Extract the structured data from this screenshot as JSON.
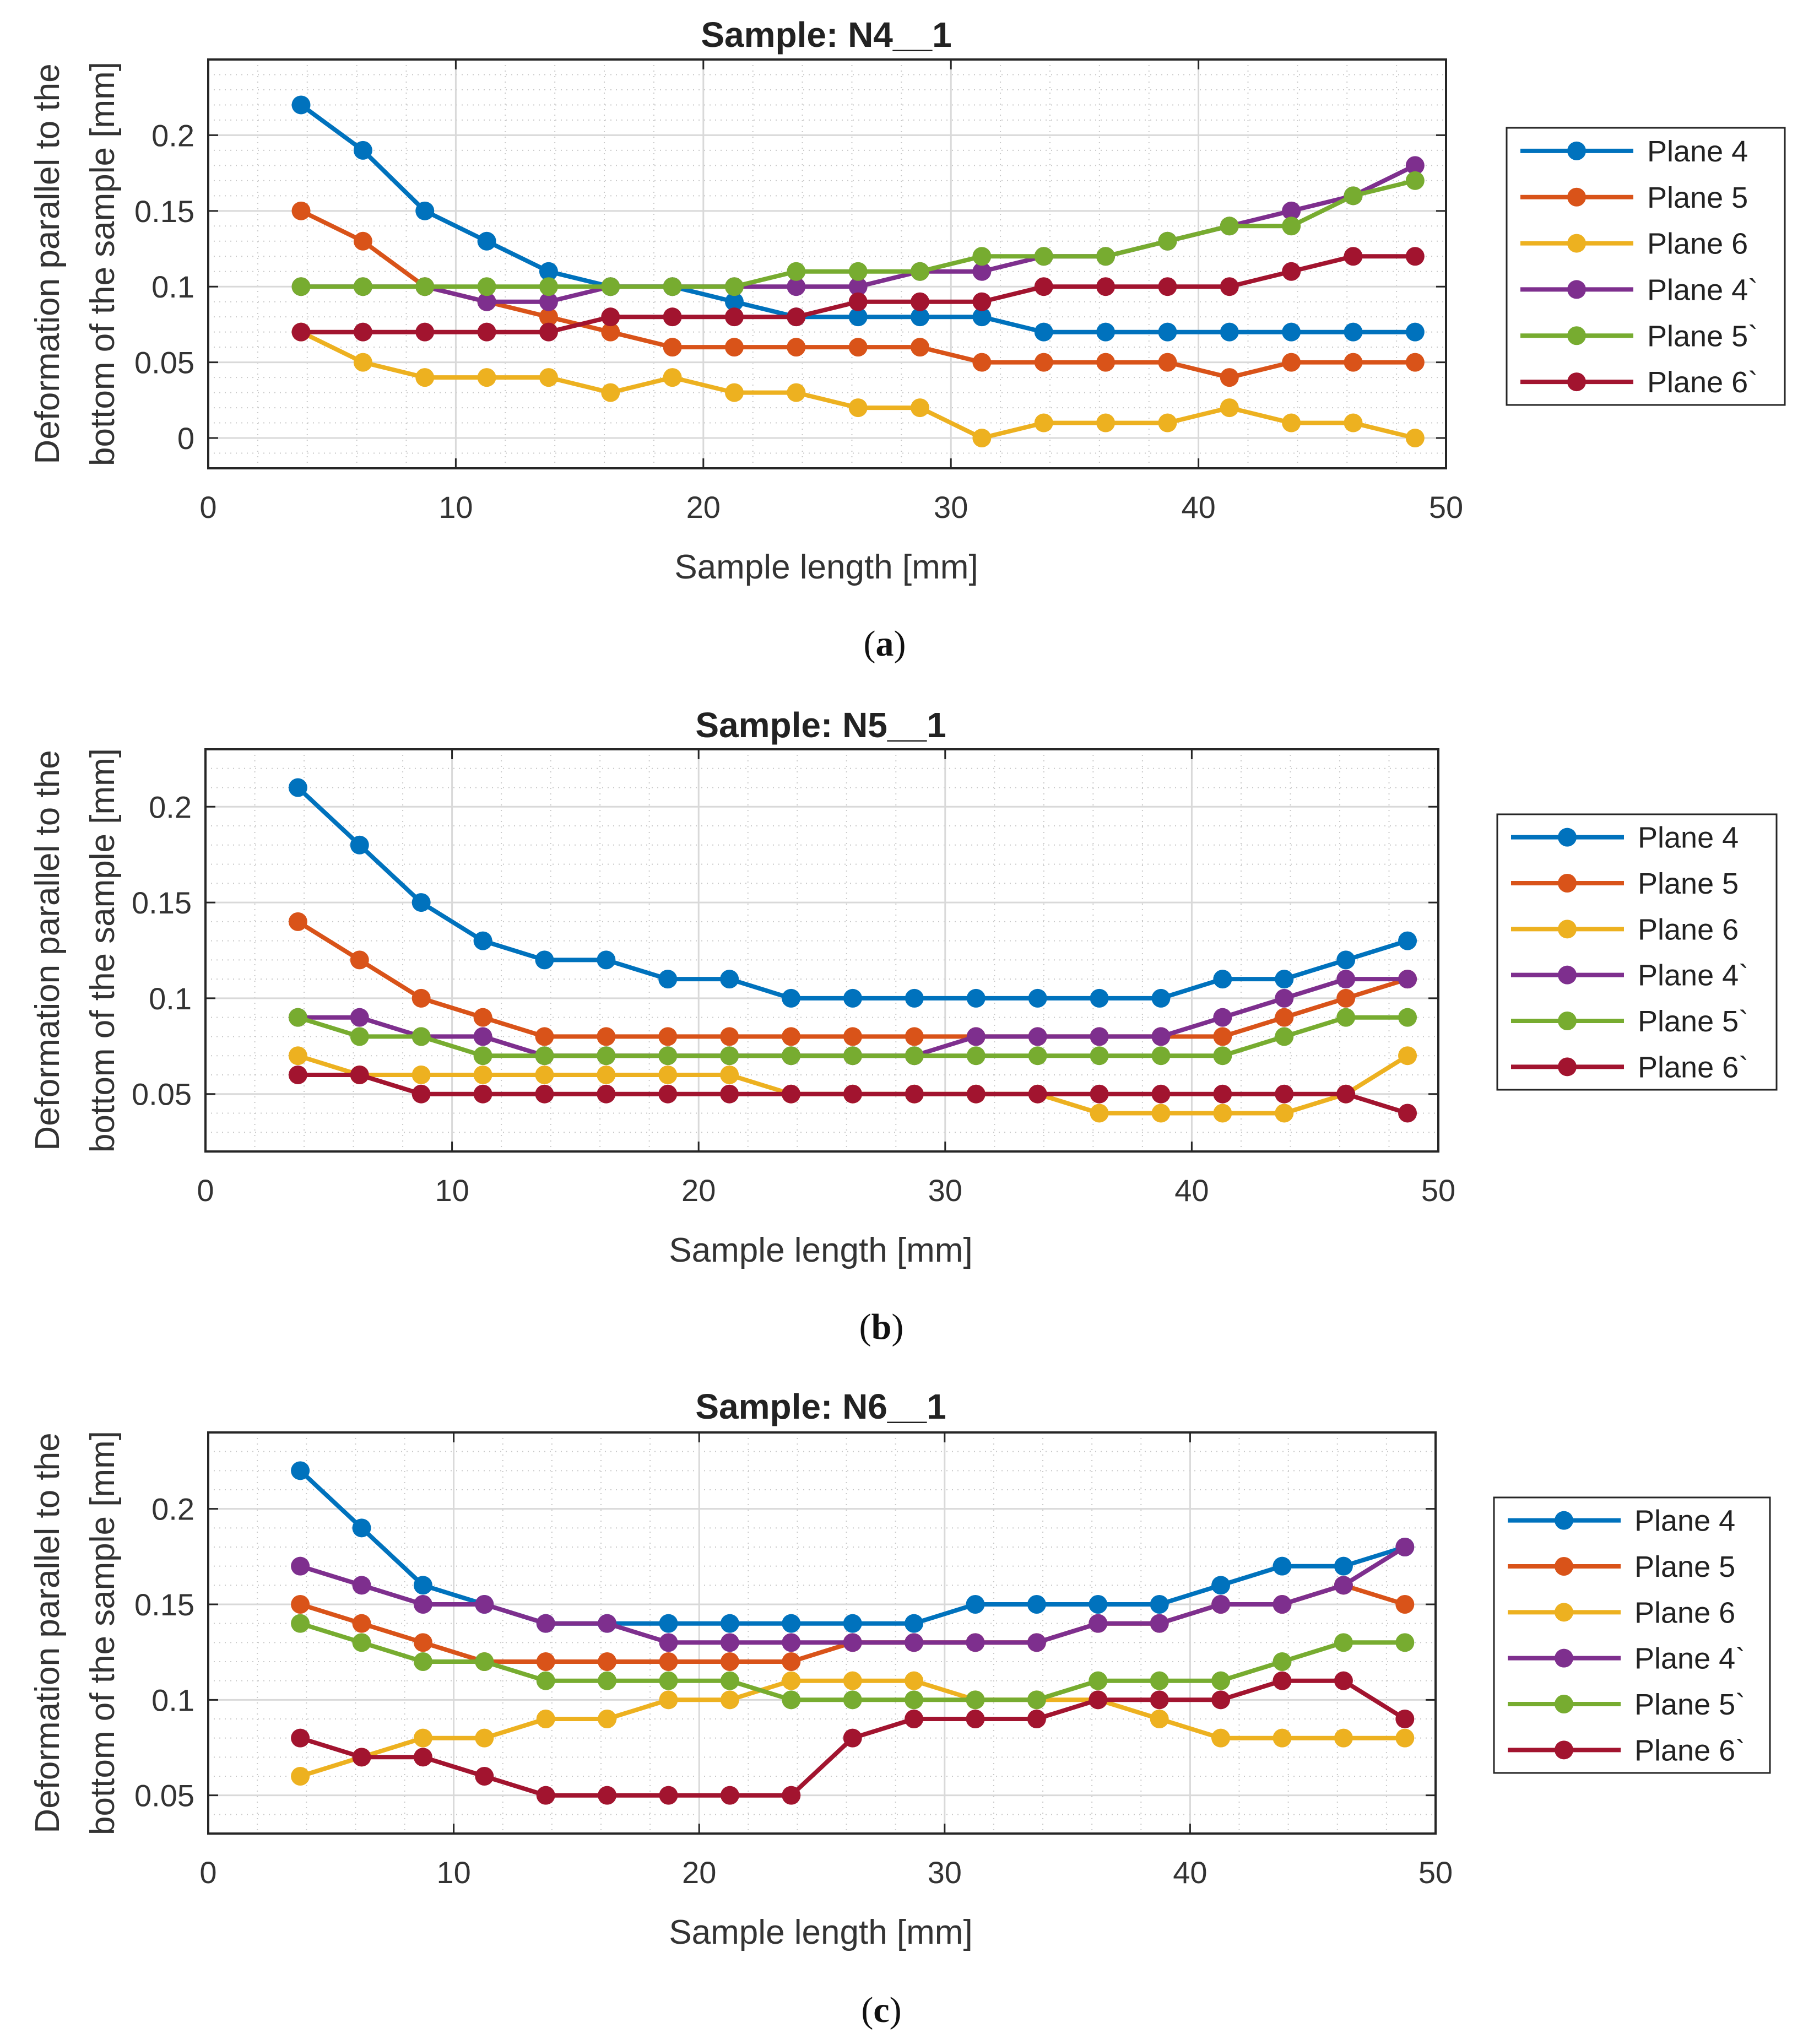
{
  "chart_data": [
    {
      "type": "line",
      "title": "Sample: N4__1",
      "caption": "a",
      "xlabel": "Sample length [mm]",
      "ylabel_line1": "Deformation parallel to the",
      "ylabel_line2": "bottom of the sample [mm]",
      "xlim": [
        0,
        50
      ],
      "ylim": [
        -0.02,
        0.25
      ],
      "xticks": [
        0,
        10,
        20,
        30,
        40,
        50
      ],
      "xtick_labels": [
        "0",
        "10",
        "20",
        "30",
        "40",
        "50"
      ],
      "yticks": [
        0,
        0.05,
        0.1,
        0.15,
        0.2
      ],
      "ytick_labels": [
        "0",
        "0.05",
        "0.1",
        "0.15",
        "0.2"
      ],
      "grid": true,
      "legend_position": "right",
      "x": [
        3.75,
        6.25,
        8.75,
        11.25,
        13.75,
        16.25,
        18.75,
        21.25,
        23.75,
        26.25,
        28.75,
        31.25,
        33.75,
        36.25,
        38.75,
        41.25,
        43.75,
        46.25,
        48.75
      ],
      "series": [
        {
          "name": "Plane 4",
          "color": "#0072BD",
          "values": [
            0.22,
            0.19,
            0.15,
            0.13,
            0.11,
            0.1,
            0.1,
            0.09,
            0.08,
            0.08,
            0.08,
            0.08,
            0.07,
            0.07,
            0.07,
            0.07,
            0.07,
            0.07,
            0.07
          ]
        },
        {
          "name": "Plane 5",
          "color": "#D95319",
          "values": [
            0.15,
            0.13,
            0.1,
            0.09,
            0.08,
            0.07,
            0.06,
            0.06,
            0.06,
            0.06,
            0.06,
            0.05,
            0.05,
            0.05,
            0.05,
            0.04,
            0.05,
            0.05,
            0.05
          ]
        },
        {
          "name": "Plane 6",
          "color": "#EDB120",
          "values": [
            0.07,
            0.05,
            0.04,
            0.04,
            0.04,
            0.03,
            0.04,
            0.03,
            0.03,
            0.02,
            0.02,
            0.0,
            0.01,
            0.01,
            0.01,
            0.02,
            0.01,
            0.01,
            0.0
          ]
        },
        {
          "name": "Plane 4`",
          "color": "#7E2F8E",
          "values": [
            0.1,
            0.1,
            0.1,
            0.09,
            0.09,
            0.1,
            0.1,
            0.1,
            0.1,
            0.1,
            0.11,
            0.11,
            0.12,
            0.12,
            0.13,
            0.14,
            0.15,
            0.16,
            0.18
          ]
        },
        {
          "name": "Plane 5`",
          "color": "#77AC30",
          "values": [
            0.1,
            0.1,
            0.1,
            0.1,
            0.1,
            0.1,
            0.1,
            0.1,
            0.11,
            0.11,
            0.11,
            0.12,
            0.12,
            0.12,
            0.13,
            0.14,
            0.14,
            0.16,
            0.17
          ]
        },
        {
          "name": "Plane 6`",
          "color": "#A2142F",
          "values": [
            0.07,
            0.07,
            0.07,
            0.07,
            0.07,
            0.08,
            0.08,
            0.08,
            0.08,
            0.09,
            0.09,
            0.09,
            0.1,
            0.1,
            0.1,
            0.1,
            0.11,
            0.12,
            0.12
          ]
        }
      ]
    },
    {
      "type": "line",
      "title": "Sample: N5__1",
      "caption": "b",
      "xlabel": "Sample length [mm]",
      "ylabel_line1": "Deformation parallel to the",
      "ylabel_line2": "bottom of the sample [mm]",
      "xlim": [
        0,
        50
      ],
      "ylim": [
        0.02,
        0.23
      ],
      "xticks": [
        0,
        10,
        20,
        30,
        40,
        50
      ],
      "xtick_labels": [
        "0",
        "10",
        "20",
        "30",
        "40",
        "50"
      ],
      "yticks": [
        0.05,
        0.1,
        0.15,
        0.2
      ],
      "ytick_labels": [
        "0.05",
        "0.1",
        "0.15",
        "0.2"
      ],
      "grid": true,
      "legend_position": "right",
      "x": [
        3.75,
        6.25,
        8.75,
        11.25,
        13.75,
        16.25,
        18.75,
        21.25,
        23.75,
        26.25,
        28.75,
        31.25,
        33.75,
        36.25,
        38.75,
        41.25,
        43.75,
        46.25,
        48.75
      ],
      "series": [
        {
          "name": "Plane 4",
          "color": "#0072BD",
          "values": [
            0.21,
            0.18,
            0.15,
            0.13,
            0.12,
            0.12,
            0.11,
            0.11,
            0.1,
            0.1,
            0.1,
            0.1,
            0.1,
            0.1,
            0.1,
            0.11,
            0.11,
            0.12,
            0.13
          ]
        },
        {
          "name": "Plane 5",
          "color": "#D95319",
          "values": [
            0.14,
            0.12,
            0.1,
            0.09,
            0.08,
            0.08,
            0.08,
            0.08,
            0.08,
            0.08,
            0.08,
            0.08,
            0.08,
            0.08,
            0.08,
            0.08,
            0.09,
            0.1,
            0.11
          ]
        },
        {
          "name": "Plane 6",
          "color": "#EDB120",
          "values": [
            0.07,
            0.06,
            0.06,
            0.06,
            0.06,
            0.06,
            0.06,
            0.06,
            0.05,
            0.05,
            0.05,
            0.05,
            0.05,
            0.04,
            0.04,
            0.04,
            0.04,
            0.05,
            0.07
          ]
        },
        {
          "name": "Plane 4`",
          "color": "#7E2F8E",
          "values": [
            0.09,
            0.09,
            0.08,
            0.08,
            0.07,
            0.07,
            0.07,
            0.07,
            0.07,
            0.07,
            0.07,
            0.08,
            0.08,
            0.08,
            0.08,
            0.09,
            0.1,
            0.11,
            0.11
          ]
        },
        {
          "name": "Plane 5`",
          "color": "#77AC30",
          "values": [
            0.09,
            0.08,
            0.08,
            0.07,
            0.07,
            0.07,
            0.07,
            0.07,
            0.07,
            0.07,
            0.07,
            0.07,
            0.07,
            0.07,
            0.07,
            0.07,
            0.08,
            0.09,
            0.09
          ]
        },
        {
          "name": "Plane 6`",
          "color": "#A2142F",
          "values": [
            0.06,
            0.06,
            0.05,
            0.05,
            0.05,
            0.05,
            0.05,
            0.05,
            0.05,
            0.05,
            0.05,
            0.05,
            0.05,
            0.05,
            0.05,
            0.05,
            0.05,
            0.05,
            0.04
          ]
        }
      ]
    },
    {
      "type": "line",
      "title": "Sample: N6__1",
      "caption": "c",
      "xlabel": "Sample length [mm]",
      "ylabel_line1": "Deformation parallel to the",
      "ylabel_line2": "bottom of the sample [mm]",
      "xlim": [
        0,
        50
      ],
      "ylim": [
        0.03,
        0.24
      ],
      "xticks": [
        0,
        10,
        20,
        30,
        40,
        50
      ],
      "xtick_labels": [
        "0",
        "10",
        "20",
        "30",
        "40",
        "50"
      ],
      "yticks": [
        0.05,
        0.1,
        0.15,
        0.2
      ],
      "ytick_labels": [
        "0.05",
        "0.1",
        "0.15",
        "0.2"
      ],
      "grid": true,
      "legend_position": "right",
      "x": [
        3.75,
        6.25,
        8.75,
        11.25,
        13.75,
        16.25,
        18.75,
        21.25,
        23.75,
        26.25,
        28.75,
        31.25,
        33.75,
        36.25,
        38.75,
        41.25,
        43.75,
        46.25,
        48.75
      ],
      "series": [
        {
          "name": "Plane 4",
          "color": "#0072BD",
          "values": [
            0.22,
            0.19,
            0.16,
            0.15,
            0.14,
            0.14,
            0.14,
            0.14,
            0.14,
            0.14,
            0.14,
            0.15,
            0.15,
            0.15,
            0.15,
            0.16,
            0.17,
            0.17,
            0.18
          ]
        },
        {
          "name": "Plane 5",
          "color": "#D95319",
          "values": [
            0.15,
            0.14,
            0.13,
            0.12,
            0.12,
            0.12,
            0.12,
            0.12,
            0.12,
            0.13,
            0.13,
            0.13,
            0.13,
            0.14,
            0.14,
            0.15,
            0.15,
            0.16,
            0.15
          ]
        },
        {
          "name": "Plane 6",
          "color": "#EDB120",
          "values": [
            0.06,
            0.07,
            0.08,
            0.08,
            0.09,
            0.09,
            0.1,
            0.1,
            0.11,
            0.11,
            0.11,
            0.1,
            0.1,
            0.1,
            0.09,
            0.08,
            0.08,
            0.08,
            0.08
          ]
        },
        {
          "name": "Plane 4`",
          "color": "#7E2F8E",
          "values": [
            0.17,
            0.16,
            0.15,
            0.15,
            0.14,
            0.14,
            0.13,
            0.13,
            0.13,
            0.13,
            0.13,
            0.13,
            0.13,
            0.14,
            0.14,
            0.15,
            0.15,
            0.16,
            0.18
          ]
        },
        {
          "name": "Plane 5`",
          "color": "#77AC30",
          "values": [
            0.14,
            0.13,
            0.12,
            0.12,
            0.11,
            0.11,
            0.11,
            0.11,
            0.1,
            0.1,
            0.1,
            0.1,
            0.1,
            0.11,
            0.11,
            0.11,
            0.12,
            0.13,
            0.13
          ]
        },
        {
          "name": "Plane 6`",
          "color": "#A2142F",
          "values": [
            0.08,
            0.07,
            0.07,
            0.06,
            0.05,
            0.05,
            0.05,
            0.05,
            0.05,
            0.08,
            0.09,
            0.09,
            0.09,
            0.1,
            0.1,
            0.1,
            0.11,
            0.11,
            0.09
          ]
        }
      ]
    }
  ]
}
